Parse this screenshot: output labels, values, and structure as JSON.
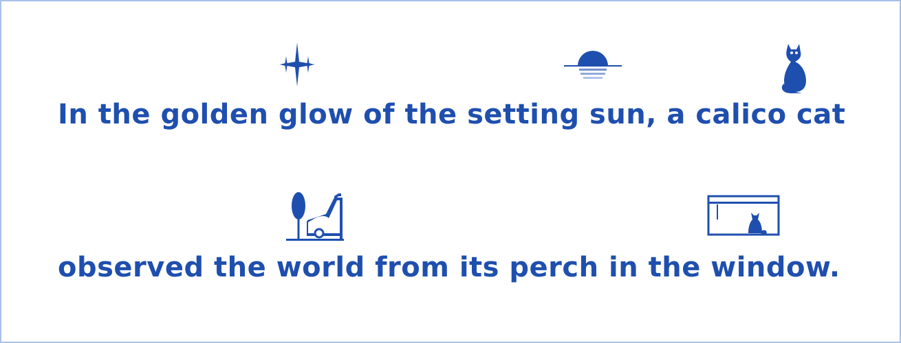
{
  "colors": {
    "ink": "#1f4fae",
    "border": "#a9c1ea",
    "background": "#ffffff"
  },
  "lines": [
    "In the golden glow of the setting sun, a calico cat",
    "observed the world from its perch in the window."
  ],
  "icons": {
    "line1": [
      "sparkle-icon",
      "sunset-icon",
      "cat-icon"
    ],
    "line2": [
      "lawn-mower-tree-icon",
      "window-cat-icon"
    ]
  }
}
